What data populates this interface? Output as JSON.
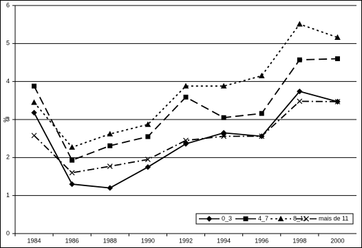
{
  "chart_data": {
    "type": "line",
    "y_label": "%",
    "categories": [
      "1984",
      "1986",
      "1988",
      "1990",
      "1992",
      "1994",
      "1996",
      "1998",
      "2000"
    ],
    "series": [
      {
        "name": "0_3",
        "color": "#000000",
        "dash": "none",
        "marker": "diamond",
        "values": [
          3.18,
          1.3,
          1.2,
          1.75,
          2.36,
          2.65,
          2.56,
          3.74,
          3.47
        ]
      },
      {
        "name": "4_7",
        "color": "#000000",
        "dash": "12,6",
        "marker": "square",
        "values": [
          3.88,
          1.93,
          2.31,
          2.55,
          3.59,
          3.05,
          3.16,
          4.57,
          4.6
        ]
      },
      {
        "name": "8_11",
        "color": "#000000",
        "dash": "3,4",
        "marker": "triangle",
        "values": [
          3.45,
          2.27,
          2.62,
          2.87,
          3.88,
          3.88,
          4.15,
          5.51,
          5.16
        ]
      },
      {
        "name": "mais de 11",
        "color": "#000000",
        "dash": "10,4,2,4",
        "marker": "x",
        "values": [
          2.58,
          1.6,
          1.77,
          1.95,
          2.45,
          2.56,
          2.56,
          3.48,
          3.47
        ]
      }
    ],
    "ylim": [
      0,
      6
    ],
    "yticks": [
      0,
      1,
      2,
      3,
      4,
      5,
      6
    ],
    "grid": true,
    "legend": "bottom-right"
  }
}
